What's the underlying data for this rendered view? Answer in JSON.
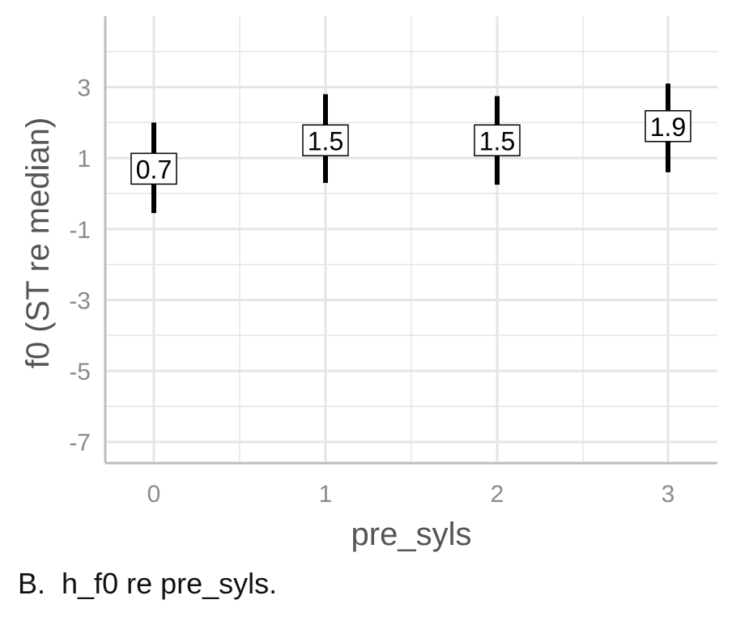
{
  "chart_data": {
    "type": "errorbar",
    "categories": [
      "0",
      "1",
      "2",
      "3"
    ],
    "series": [
      {
        "values": [
          0.7,
          1.5,
          1.5,
          1.9
        ],
        "lower": [
          -0.55,
          0.3,
          0.25,
          0.6
        ],
        "upper": [
          2.0,
          2.8,
          2.75,
          3.1
        ],
        "labels": [
          "0.7",
          "1.5",
          "1.5",
          "1.9"
        ]
      }
    ],
    "xlabel": "pre_syls",
    "ylabel": "f0 (ST re median)",
    "ylim": [
      -7.6,
      5.0
    ],
    "yticks": [
      -7,
      -5,
      -3,
      -1,
      1,
      3
    ],
    "grid": true,
    "colors": {
      "bar": "#000000",
      "grid": "#e5e5e5",
      "axis": "#bdbdbd"
    }
  },
  "caption": "B.  h_f0 re pre_syls."
}
